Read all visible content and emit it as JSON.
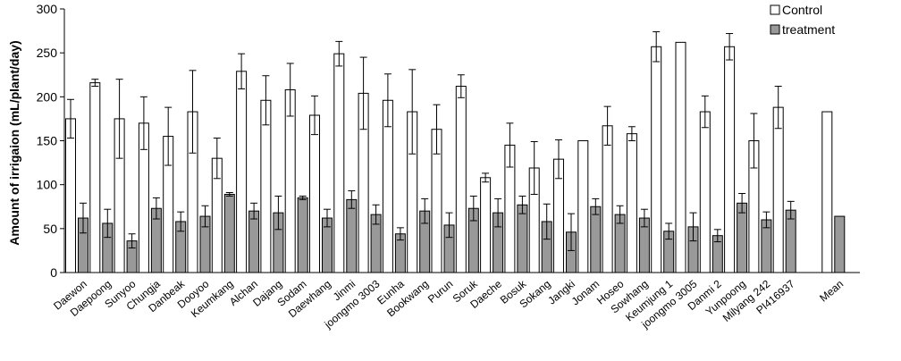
{
  "chart_data": {
    "type": "bar",
    "title": "",
    "xlabel": "",
    "ylabel": "Amount of irrigaion (mL/plant/day)",
    "ylim": [
      0,
      300
    ],
    "yticks": [
      0,
      50,
      100,
      150,
      200,
      250,
      300
    ],
    "grid": false,
    "legend_position": "top-right",
    "categories": [
      "Daewon",
      "Daepoong",
      "Sunyoo",
      "Chungja",
      "Danbeak",
      "Dooyoo",
      "Keumkang",
      "Alchan",
      "Dajang",
      "Sodam",
      "Daewhang",
      "Jinmi",
      "joongmo 3003",
      "Eunha",
      "Bookwang",
      "Purun",
      "Soruk",
      "Daeche",
      "Bosuk",
      "Sokang",
      "Jangki",
      "Jonam",
      "Hoseo",
      "Sowhang",
      "Keumjung 1",
      "joongmo 3005",
      "Danmi 2",
      "Yunpoong",
      "Milyang 242",
      "PI416937",
      "",
      "Mean"
    ],
    "series": [
      {
        "name": "Control",
        "color": "#ffffff",
        "values": [
          175,
          216,
          175,
          170,
          155,
          183,
          130,
          229,
          196,
          208,
          179,
          249,
          204,
          196,
          183,
          163,
          212,
          108,
          145,
          119,
          129,
          150,
          167,
          158,
          257,
          262,
          183,
          257,
          150,
          188,
          null,
          183
        ],
        "errors": [
          22,
          4,
          45,
          30,
          33,
          47,
          23,
          20,
          28,
          30,
          22,
          14,
          41,
          30,
          48,
          28,
          13,
          5,
          25,
          30,
          22,
          null,
          22,
          8,
          17,
          null,
          18,
          15,
          31,
          24,
          null,
          null
        ]
      },
      {
        "name": "treatment",
        "color": "#999999",
        "values": [
          62,
          56,
          36,
          73,
          58,
          64,
          89,
          70,
          68,
          85,
          62,
          83,
          66,
          44,
          70,
          54,
          73,
          68,
          77,
          58,
          46,
          75,
          66,
          62,
          47,
          52,
          42,
          79,
          60,
          71,
          null,
          64
        ],
        "errors": [
          17,
          16,
          8,
          12,
          11,
          12,
          2,
          9,
          19,
          2,
          10,
          10,
          11,
          7,
          14,
          14,
          14,
          16,
          10,
          20,
          21,
          9,
          10,
          10,
          9,
          16,
          7,
          11,
          9,
          10,
          null,
          null
        ]
      }
    ]
  }
}
